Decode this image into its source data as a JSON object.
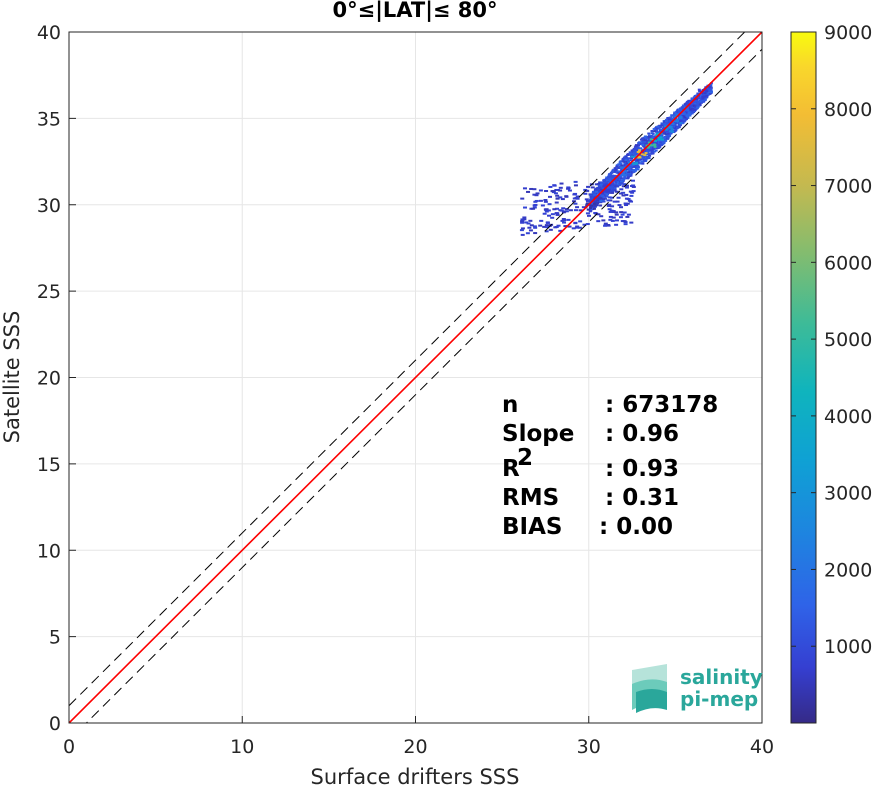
{
  "chart_data": {
    "type": "heatmap",
    "title": "0°≤|LAT|≤ 80°",
    "xlabel": "Surface drifters SSS",
    "ylabel": "Satellite SSS",
    "xlim": [
      0,
      40
    ],
    "ylim": [
      0,
      40
    ],
    "xticks": [
      "0",
      "10",
      "20",
      "30",
      "40"
    ],
    "yticks": [
      "0",
      "5",
      "10",
      "15",
      "20",
      "25",
      "30",
      "35",
      "40"
    ],
    "grid": true,
    "colorbar": {
      "colormap": "parula",
      "min": 0,
      "max": 9000,
      "ticks": [
        "1000",
        "2000",
        "3000",
        "4000",
        "5000",
        "6000",
        "7000",
        "8000",
        "9000"
      ],
      "tick_values": [
        1000,
        2000,
        3000,
        4000,
        5000,
        6000,
        7000,
        8000,
        9000
      ]
    },
    "lines": {
      "one_to_one": {
        "color": "#000000",
        "style": "solid"
      },
      "regression": {
        "color": "#ff0000",
        "style": "solid",
        "slope": 0.96
      },
      "bounds": {
        "color": "#000000",
        "style": "dashed",
        "offset": 1.0
      }
    },
    "density_cells": [
      {
        "x": 33.0,
        "y": 33.0,
        "count": 7600
      },
      {
        "x": 33.5,
        "y": 33.6,
        "count": 5200
      },
      {
        "x": 34.0,
        "y": 34.0,
        "count": 3600
      },
      {
        "x": 32.5,
        "y": 32.6,
        "count": 3000
      },
      {
        "x": 34.5,
        "y": 34.5,
        "count": 2600
      },
      {
        "x": 35.0,
        "y": 35.0,
        "count": 2200
      },
      {
        "x": 35.5,
        "y": 35.4,
        "count": 1600
      },
      {
        "x": 36.0,
        "y": 36.0,
        "count": 1200
      },
      {
        "x": 36.5,
        "y": 36.5,
        "count": 700
      },
      {
        "x": 32.0,
        "y": 32.0,
        "count": 1900
      },
      {
        "x": 31.5,
        "y": 31.5,
        "count": 1100
      },
      {
        "x": 31.0,
        "y": 31.0,
        "count": 700
      },
      {
        "x": 30.5,
        "y": 30.2,
        "count": 500
      },
      {
        "x": 30.0,
        "y": 30.0,
        "count": 300
      }
    ],
    "stats": [
      {
        "label": "n",
        "value": ": 673178"
      },
      {
        "label": "Slope",
        "value": ": 0.96"
      },
      {
        "label": "R",
        "sup": "2",
        "value": ": 0.93"
      },
      {
        "label": "RMS",
        "value": ": 0.31"
      },
      {
        "label": "BIAS",
        "value": ": 0.00"
      }
    ]
  },
  "logo": {
    "line1": "salinity",
    "line2": "pi-mep",
    "color": "#2aa79b"
  }
}
